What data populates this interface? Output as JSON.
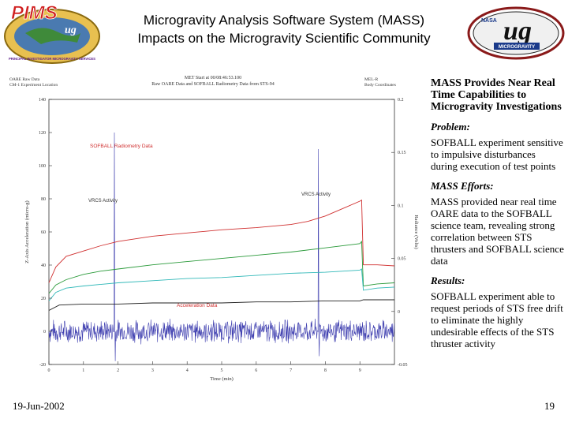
{
  "header": {
    "title_line1": "Microgravity Analysis Software System (MASS)",
    "title_line2": "Impacts on the Microgravity Scientific Community",
    "left_logo_text": "PIMS",
    "left_logo_sub": "ug",
    "left_logo_ring": "PRINCIPAL INVESTIGATOR MICROGRAVITY SERVICES",
    "right_logo_agency": "NASA",
    "right_logo_text": "ug",
    "right_logo_banner": "MICROGRAVITY"
  },
  "chart": {
    "top_left_line1": "OARE Raw Data",
    "top_left_line2": "CM-1 Experiment Location",
    "top_center_line1": "MET Start at 00/08:46:53.100",
    "top_center_line2": "Raw OARE Data and SOFBALL Radiometry Data from STS-94",
    "top_right_line1": "MEL-R",
    "top_right_line2": "Body Coordinates",
    "label_sofball": "SOFBALL Radiometry Data",
    "label_vrcs1": "VRCS Activity",
    "label_vrcs2": "VRCS Activity",
    "label_accel": "Acceleration Data"
  },
  "chart_data": {
    "type": "line",
    "title": "Raw OARE Data and SOFBALL Radiometry Data from STS-94",
    "xlabel": "Time (min)",
    "ylabel": "Z-Axis Acceleration (micro-g)",
    "y2label": "Radiance (Volts)",
    "xlim": [
      0,
      10
    ],
    "ylim": [
      -20,
      140
    ],
    "y2lim": [
      -0.05,
      0.2
    ],
    "x_ticks": [
      "0",
      "1",
      "2",
      "3",
      "4",
      "5",
      "6",
      "7",
      "8",
      "9"
    ],
    "y_ticks": [
      "-20",
      "0",
      "20",
      "40",
      "60",
      "80",
      "100",
      "120",
      "140"
    ],
    "y2_ticks": [
      "-0.05",
      "0",
      "0.05",
      "0.1",
      "0.15",
      "0.2"
    ],
    "series": [
      {
        "name": "SOFBALL Radiometry Data",
        "color": "#d03030",
        "axis": "right",
        "x": [
          0,
          0.2,
          0.5,
          1,
          1.5,
          2,
          3,
          4,
          5,
          6,
          7,
          7.5,
          8,
          8.5,
          9,
          9.05,
          9.1,
          9.5,
          10
        ],
        "y": [
          0.027,
          0.042,
          0.052,
          0.057,
          0.062,
          0.066,
          0.071,
          0.074,
          0.077,
          0.079,
          0.082,
          0.085,
          0.09,
          0.097,
          0.104,
          0.105,
          0.044,
          0.044,
          0.043
        ]
      },
      {
        "name": "Green",
        "color": "#2a9a3a",
        "axis": "right",
        "x": [
          0,
          0.2,
          0.5,
          1,
          1.5,
          2,
          3,
          4,
          5,
          6,
          7,
          8,
          9,
          9.05,
          9.1,
          9.5,
          10
        ],
        "y": [
          0.017,
          0.025,
          0.03,
          0.035,
          0.038,
          0.04,
          0.044,
          0.047,
          0.05,
          0.053,
          0.056,
          0.06,
          0.064,
          0.066,
          0.024,
          0.026,
          0.027
        ]
      },
      {
        "name": "Cyan",
        "color": "#30b8b8",
        "axis": "right",
        "x": [
          0,
          0.2,
          0.5,
          1,
          2,
          3,
          4,
          5,
          6,
          7,
          8,
          9,
          9.05,
          9.1,
          9.5,
          10
        ],
        "y": [
          0.01,
          0.018,
          0.022,
          0.024,
          0.027,
          0.029,
          0.031,
          0.032,
          0.034,
          0.036,
          0.037,
          0.039,
          0.04,
          0.02,
          0.022,
          0.023
        ]
      },
      {
        "name": "Black",
        "color": "#202020",
        "axis": "right",
        "x": [
          0,
          0.3,
          1,
          2,
          3,
          4,
          5,
          6,
          7,
          8,
          9,
          9.1,
          10
        ],
        "y": [
          0.001,
          0.006,
          0.007,
          0.007,
          0.008,
          0.008,
          0.008,
          0.009,
          0.009,
          0.01,
          0.01,
          0.011,
          0.011
        ]
      }
    ],
    "acceleration": {
      "name": "Acceleration Data",
      "color": "#4040b0",
      "baseline": 0,
      "noise": 4,
      "spikes": [
        {
          "x": 1.9,
          "y": 120
        },
        {
          "x": 1.92,
          "y": -18
        },
        {
          "x": 7.8,
          "y": 110
        },
        {
          "x": 7.82,
          "y": -15
        }
      ]
    },
    "grid": false,
    "legend": "inline labels"
  },
  "side": {
    "heading": "MASS Provides Near Real Time Capabilities to Microgravity Investigations",
    "problem_label": "Problem:",
    "problem_text": "SOFBALL experiment sensitive to impulsive disturbances during execution of test points",
    "efforts_label": "MASS Efforts:",
    "efforts_text": "MASS provided near real time OARE data to the SOFBALL science team, revealing strong correlation between STS thrusters and SOFBALL science data",
    "results_label": "Results:",
    "results_text": "SOFBALL experiment able to request periods of STS free drift to eliminate the highly undesirable effects of the STS thruster activity"
  },
  "footer": {
    "date": "19-Jun-2002",
    "page": "19"
  }
}
